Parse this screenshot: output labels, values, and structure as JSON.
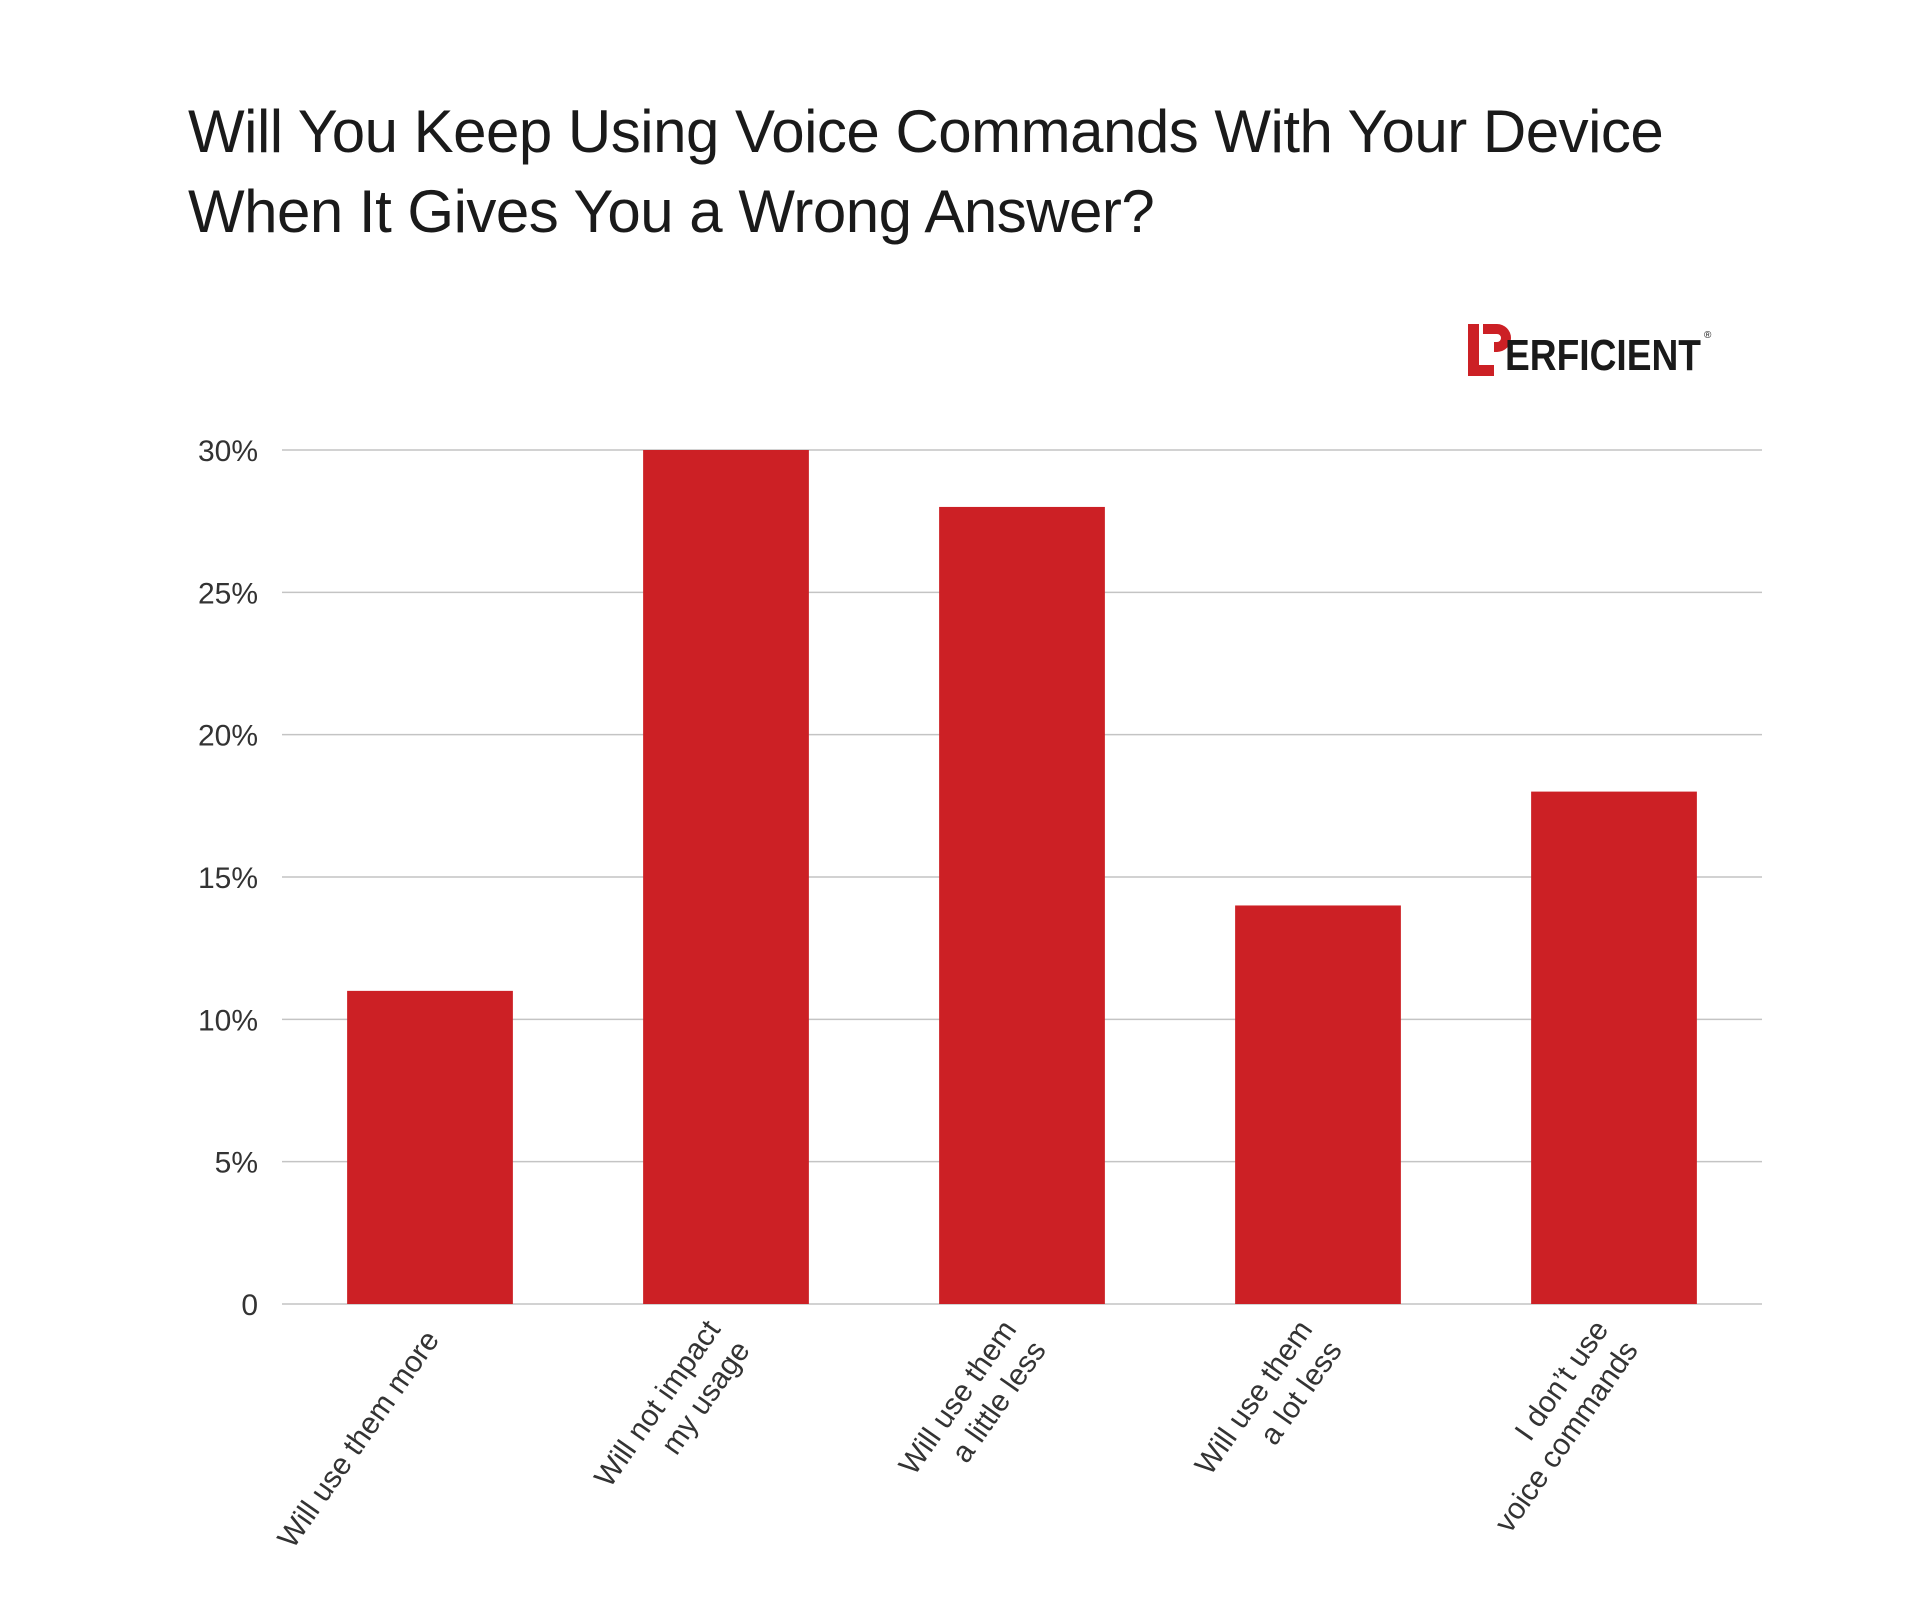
{
  "title_lines": [
    "Will You Keep Using Voice Commands With Your Device",
    "When It Gives You a Wrong Answer?"
  ],
  "logo": {
    "text": "ERFICIENT",
    "reg_mark": "®",
    "color_mark": "#cc2025",
    "color_text": "#1a1a1a"
  },
  "colors": {
    "bar": "#cc2025",
    "grid": "#c4c4c4",
    "axis_text": "#333333"
  },
  "chart_data": {
    "type": "bar",
    "categories": [
      [
        "Will use them more"
      ],
      [
        "Will not impact",
        "my usage"
      ],
      [
        "Will use them",
        "a little less"
      ],
      [
        "Will use them",
        "a lot less"
      ],
      [
        "I don’t use",
        "voice commands"
      ]
    ],
    "values": [
      11,
      30,
      28,
      14,
      18
    ],
    "ylim": [
      0,
      30
    ],
    "yticks": [
      0,
      5,
      10,
      15,
      20,
      25,
      30
    ],
    "ytick_labels": [
      "0",
      "5%",
      "10%",
      "15%",
      "20%",
      "25%",
      "30%"
    ],
    "grid": true,
    "unit": "%"
  }
}
